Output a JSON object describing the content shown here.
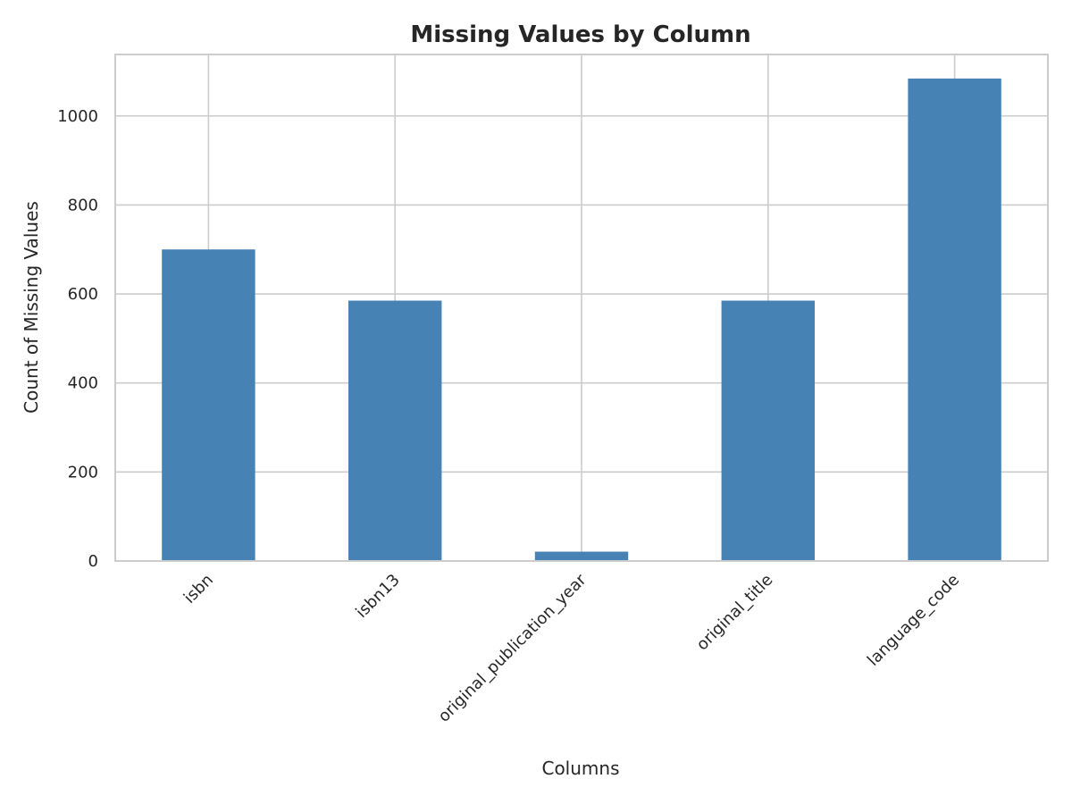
{
  "chart_data": {
    "type": "bar",
    "title": "Missing Values by Column",
    "xlabel": "Columns",
    "ylabel": "Count of Missing Values",
    "categories": [
      "isbn",
      "isbn13",
      "original_publication_year",
      "original_title",
      "language_code"
    ],
    "values": [
      700,
      585,
      21,
      585,
      1084
    ],
    "ylim": [
      0,
      1138
    ],
    "yticks": [
      0,
      200,
      400,
      600,
      800,
      1000
    ],
    "grid": true,
    "legend": "none",
    "bar_color": "#4682b4",
    "grid_color": "#cccccc",
    "frame_color": "#cccccc",
    "text_color": "#262626"
  }
}
